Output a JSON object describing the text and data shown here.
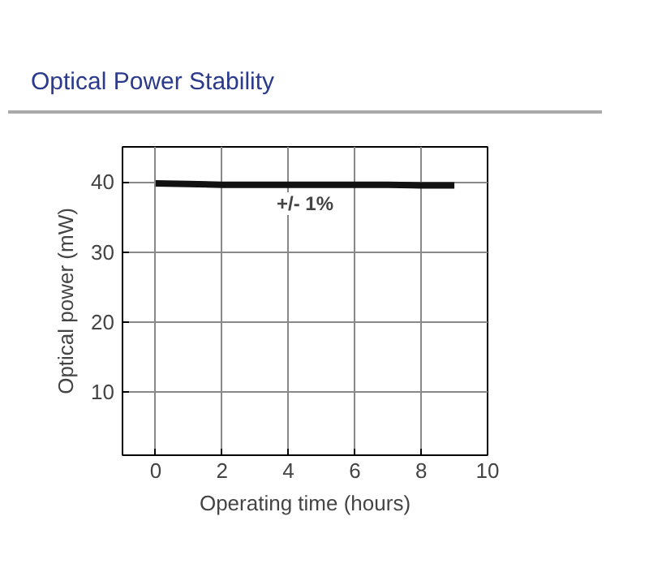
{
  "chart_data": {
    "type": "line",
    "title": "Optical Power Stability",
    "xlabel": "Operating time (hours)",
    "ylabel": "Optical power (mW)",
    "x": [
      0,
      1,
      2,
      3,
      4,
      5,
      6,
      7,
      8,
      9
    ],
    "series": [
      {
        "color": "#111111",
        "values": [
          39.8,
          39.7,
          39.6,
          39.6,
          39.6,
          39.6,
          39.6,
          39.6,
          39.5,
          39.5
        ]
      }
    ],
    "xlim": [
      -1,
      10
    ],
    "xticks": [
      0,
      2,
      4,
      6,
      8,
      10
    ],
    "ylim": [
      1,
      45
    ],
    "yticks": [
      10,
      20,
      30,
      40
    ],
    "grid": true,
    "marker": "none",
    "line_style": "solid",
    "annotations": [
      "+/- 1%"
    ]
  }
}
